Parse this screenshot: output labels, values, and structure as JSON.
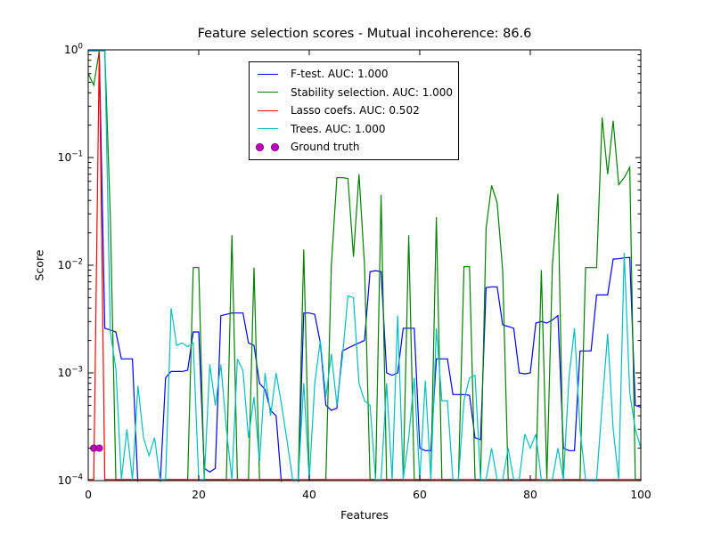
{
  "title": "Feature selection scores - Mutual incoherence: 86.6",
  "axes": {
    "x_ticks": [
      0,
      20,
      40,
      60,
      80,
      100
    ],
    "y_tick_base": "10",
    "y_tick_exponents": [
      0,
      -1,
      -2,
      -3,
      -4
    ]
  },
  "legend": {
    "position": "upper center-left",
    "items": [
      {
        "label": "F-test. AUC: 1.000",
        "color": "#0000ff",
        "swatch": "line"
      },
      {
        "label": "Stability selection. AUC: 1.000",
        "color": "#008000",
        "swatch": "line"
      },
      {
        "label": "Lasso coefs. AUC: 0.502",
        "color": "#ff0000",
        "swatch": "line"
      },
      {
        "label": "Trees. AUC: 1.000",
        "color": "#00bfbf",
        "swatch": "line"
      },
      {
        "label": "Ground truth",
        "color": "#bf00bf",
        "swatch": "markers"
      }
    ]
  },
  "chart_data": {
    "type": "line",
    "title": "Feature selection scores - Mutual incoherence: 86.6",
    "xlabel": "Features",
    "ylabel": "Score",
    "x_range": [
      0,
      100
    ],
    "y_range": [
      0.0001,
      1.0
    ],
    "y_scale": "log",
    "grid": false,
    "x_start": 0,
    "x_step": 1,
    "series": [
      {
        "name": "F-test. AUC: 1.000",
        "color": "#0000ff",
        "values": [
          1.0,
          1.0,
          1.0,
          0.0026,
          0.0025,
          0.0024,
          0.00135,
          0.00135,
          0.00135,
          9e-05,
          7e-05,
          7e-05,
          7e-05,
          8e-05,
          0.0009,
          0.00103,
          0.00103,
          0.00103,
          0.00106,
          0.0024,
          0.0024,
          0.00013,
          0.00012,
          0.00013,
          0.0034,
          0.0035,
          0.0036,
          0.0036,
          0.0036,
          0.0019,
          0.0018,
          0.0008,
          0.0007,
          0.00045,
          0.0004,
          9e-05,
          7e-05,
          7e-05,
          8e-05,
          0.0036,
          0.0036,
          0.0035,
          0.0019,
          0.0005,
          0.00045,
          0.00047,
          0.0016,
          0.0017,
          0.0018,
          0.0019,
          0.002,
          0.0087,
          0.0089,
          0.0087,
          0.001,
          0.00095,
          0.001,
          0.0026,
          0.0026,
          0.0026,
          0.0002,
          0.00019,
          0.00019,
          0.00135,
          0.00135,
          0.00135,
          0.00063,
          0.00063,
          0.00063,
          0.00062,
          0.00025,
          0.00024,
          0.0062,
          0.0063,
          0.0063,
          0.0028,
          0.0027,
          0.0026,
          0.001,
          0.00098,
          0.001,
          0.0029,
          0.003,
          0.0029,
          0.0031,
          0.0034,
          0.0002,
          0.00019,
          0.00019,
          0.0016,
          0.0016,
          0.0016,
          0.0053,
          0.0053,
          0.0053,
          0.0114,
          0.0115,
          0.0117,
          0.0118,
          0.0005,
          0.00048,
          0.00048
        ]
      },
      {
        "name": "Stability selection. AUC: 1.000",
        "color": "#008000",
        "values": [
          0.6,
          0.47,
          1.0,
          1.0,
          0.028,
          0.0001,
          0.0001,
          0.0001,
          0.0001,
          0.0001,
          0.0001,
          0.0001,
          0.0001,
          0.0001,
          0.0001,
          0.0001,
          0.0001,
          0.0001,
          0.0001,
          0.0095,
          0.0095,
          0.0001,
          0.0001,
          0.0001,
          0.0001,
          0.0001,
          0.019,
          0.0001,
          0.0001,
          0.0001,
          0.0095,
          0.0001,
          0.0001,
          0.0001,
          0.0001,
          0.0001,
          0.0001,
          0.0001,
          0.0001,
          0.014,
          0.0001,
          0.0001,
          0.0001,
          0.0001,
          0.01,
          0.065,
          0.065,
          0.064,
          0.012,
          0.07,
          0.01,
          0.0001,
          0.0001,
          0.045,
          0.0001,
          0.0001,
          0.0001,
          0.0001,
          0.019,
          0.0001,
          0.0001,
          0.0001,
          0.0001,
          0.028,
          0.0001,
          0.0001,
          0.0001,
          0.0001,
          0.0097,
          0.0097,
          0.0001,
          0.0001,
          0.022,
          0.055,
          0.038,
          0.009,
          0.0001,
          0.0001,
          0.0001,
          0.0001,
          0.0001,
          0.0001,
          0.009,
          0.0001,
          0.01,
          0.046,
          0.0001,
          0.0001,
          0.0001,
          0.0001,
          0.0095,
          0.0095,
          0.0095,
          0.235,
          0.07,
          0.22,
          0.056,
          0.065,
          0.081,
          0.0001,
          0.0001,
          0.0001
        ]
      },
      {
        "name": "Lasso coefs. AUC: 0.502",
        "color": "#ff0000",
        "values": [
          0.0001,
          0.0001,
          1.0,
          0.0001,
          0.0001,
          0.0001,
          0.0001,
          0.0001,
          0.0001,
          0.0001,
          0.0001,
          0.0001,
          0.0001,
          0.0001,
          0.0001,
          0.0001,
          0.0001,
          0.0001,
          0.0001,
          0.0001,
          0.0001,
          0.0001,
          0.0001,
          0.0001,
          0.0001,
          0.0001,
          0.0001,
          0.0001,
          0.0001,
          0.0001,
          0.0001,
          0.0001,
          0.0001,
          0.0001,
          0.0001,
          0.0001,
          0.0001,
          0.0001,
          0.0001,
          0.0001,
          0.0001,
          0.0001,
          0.0001,
          0.0001,
          0.0001,
          0.0001,
          0.0001,
          0.0001,
          0.0001,
          0.0001,
          0.0001,
          0.0001,
          0.0001,
          0.0001,
          0.0001,
          0.0001,
          0.0001,
          0.0001,
          0.0001,
          0.0001,
          0.0001,
          0.0001,
          0.0001,
          0.0001,
          0.0001,
          0.0001,
          0.0001,
          0.0001,
          0.0001,
          0.0001,
          0.0001,
          0.0001,
          0.0001,
          0.0001,
          0.0001,
          0.0001,
          0.0001,
          0.0001,
          0.0001,
          0.0001,
          0.0001,
          0.0001,
          0.0001,
          0.0001,
          0.0001,
          0.0001,
          0.0001,
          0.0001,
          0.0001,
          0.0001,
          0.0001,
          0.0001,
          0.0001,
          0.0001,
          0.0001,
          0.0001,
          0.0001,
          0.0001,
          0.0001,
          0.0001,
          0.0001,
          0.0001
        ]
      },
      {
        "name": "Trees. AUC: 1.000",
        "color": "#00bfbf",
        "values": [
          1.0,
          1.0,
          1.0,
          1.0,
          0.0024,
          0.0011,
          0.0001,
          0.0003,
          0.0001,
          0.00076,
          0.00025,
          0.00017,
          0.00025,
          0.0001,
          0.0001,
          0.004,
          0.0018,
          0.0019,
          0.00175,
          0.0019,
          0.0001,
          0.0001,
          0.0012,
          0.0005,
          0.0012,
          0.0003,
          0.0001,
          0.00135,
          0.00105,
          0.00025,
          0.0006,
          0.00015,
          0.001,
          0.0004,
          0.001,
          0.0005,
          0.00023,
          0.0001,
          0.0001,
          0.0008,
          0.0001,
          0.0008,
          0.002,
          0.0006,
          0.0015,
          0.0005,
          0.0014,
          0.0052,
          0.005,
          0.0008,
          0.00055,
          0.0005,
          0.0001,
          0.0001,
          0.0008,
          0.0001,
          0.0034,
          0.0001,
          0.00025,
          0.0009,
          0.0001,
          0.00085,
          0.0001,
          0.0026,
          0.00055,
          0.00055,
          0.0001,
          0.0001,
          0.00055,
          0.0009,
          0.00095,
          0.0001,
          0.0001,
          0.0002,
          0.0001,
          0.0001,
          0.0002,
          0.0001,
          0.0001,
          0.00027,
          0.0002,
          0.00027,
          0.0001,
          0.0001,
          0.0001,
          0.0002,
          0.0001,
          0.0009,
          0.0026,
          0.0003,
          0.0001,
          0.0001,
          0.0001,
          0.0005,
          0.0023,
          0.0003,
          0.0001,
          0.013,
          0.00065,
          0.0003,
          0.0002,
          0.0002
        ]
      }
    ],
    "ground_truth": {
      "name": "Ground truth",
      "color": "#bf00bf",
      "edge_color": "#8a008a",
      "points": [
        {
          "x": 1,
          "y": 0.0002
        },
        {
          "x": 2,
          "y": 0.0002
        }
      ]
    }
  }
}
